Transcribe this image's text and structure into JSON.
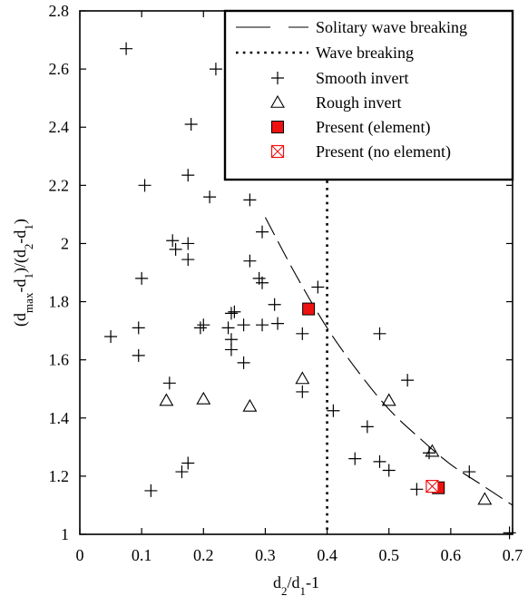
{
  "chart_data": {
    "type": "scatter",
    "title": "",
    "xlabel": {
      "base": "d",
      "sub": "2",
      "mid": "/d",
      "sub2": "1",
      "tail": "-1"
    },
    "ylabel": {
      "open": "(d",
      "sub1": "max",
      "p2": "-d",
      "sub2": "1",
      "p3": ")/(d",
      "sub3": "2",
      "p4": "-d",
      "sub4": "1",
      "p5": ")"
    },
    "xlim": [
      0,
      0.7
    ],
    "ylim": [
      1.0,
      2.8
    ],
    "xticks": [
      0,
      0.1,
      0.2,
      0.3,
      0.4,
      0.5,
      0.6,
      0.7
    ],
    "xtick_labels": [
      "0",
      "0.1",
      "0.2",
      "0.3",
      "0.4",
      "0.5",
      "0.6",
      "0.7"
    ],
    "yticks": [
      1.0,
      1.2,
      1.4,
      1.6,
      1.8,
      2.0,
      2.2,
      2.4,
      2.6,
      2.8
    ],
    "ytick_labels": [
      "1",
      "1.2",
      "1.4",
      "1.6",
      "1.8",
      "2",
      "2.2",
      "2.4",
      "2.6",
      "2.8"
    ],
    "grid": false,
    "legend_position": "top-right",
    "series": [
      {
        "name": "Solitary wave breaking",
        "kind": "curve",
        "style": "long-dash",
        "x": [
          0.3,
          0.35,
          0.4,
          0.45,
          0.5,
          0.55,
          0.6,
          0.65,
          0.7
        ],
        "y": [
          2.09,
          1.89,
          1.71,
          1.56,
          1.43,
          1.33,
          1.24,
          1.17,
          1.1
        ]
      },
      {
        "name": "Wave breaking",
        "kind": "vline",
        "style": "dotted",
        "x": 0.4
      },
      {
        "name": "Smooth invert",
        "kind": "scatter",
        "marker": "plus",
        "points": [
          [
            0.075,
            2.67
          ],
          [
            0.22,
            2.6
          ],
          [
            0.18,
            2.41
          ],
          [
            0.175,
            2.235
          ],
          [
            0.105,
            2.2
          ],
          [
            0.21,
            2.16
          ],
          [
            0.275,
            2.15
          ],
          [
            0.295,
            2.04
          ],
          [
            0.15,
            2.01
          ],
          [
            0.175,
            2.0
          ],
          [
            0.155,
            1.98
          ],
          [
            0.175,
            1.945
          ],
          [
            0.275,
            1.94
          ],
          [
            0.29,
            1.88
          ],
          [
            0.295,
            1.865
          ],
          [
            0.1,
            1.88
          ],
          [
            0.385,
            1.85
          ],
          [
            0.315,
            1.79
          ],
          [
            0.25,
            1.765
          ],
          [
            0.245,
            1.76
          ],
          [
            0.2,
            1.72
          ],
          [
            0.195,
            1.71
          ],
          [
            0.24,
            1.71
          ],
          [
            0.265,
            1.72
          ],
          [
            0.295,
            1.72
          ],
          [
            0.32,
            1.725
          ],
          [
            0.095,
            1.71
          ],
          [
            0.05,
            1.68
          ],
          [
            0.245,
            1.67
          ],
          [
            0.36,
            1.69
          ],
          [
            0.485,
            1.69
          ],
          [
            0.095,
            1.615
          ],
          [
            0.245,
            1.635
          ],
          [
            0.265,
            1.59
          ],
          [
            0.145,
            1.52
          ],
          [
            0.36,
            1.49
          ],
          [
            0.53,
            1.53
          ],
          [
            0.41,
            1.425
          ],
          [
            0.465,
            1.37
          ],
          [
            0.565,
            1.28
          ],
          [
            0.445,
            1.26
          ],
          [
            0.485,
            1.25
          ],
          [
            0.175,
            1.245
          ],
          [
            0.165,
            1.215
          ],
          [
            0.5,
            1.22
          ],
          [
            0.63,
            1.215
          ],
          [
            0.545,
            1.155
          ],
          [
            0.115,
            1.15
          ],
          [
            0.695,
            1.005
          ]
        ]
      },
      {
        "name": "Rough invert",
        "kind": "scatter",
        "marker": "triangle",
        "points": [
          [
            0.14,
            1.46
          ],
          [
            0.2,
            1.465
          ],
          [
            0.275,
            1.44
          ],
          [
            0.36,
            1.535
          ],
          [
            0.5,
            1.46
          ],
          [
            0.57,
            1.285
          ],
          [
            0.655,
            1.12
          ]
        ]
      },
      {
        "name": "Present (element)",
        "kind": "scatter",
        "marker": "filled-square",
        "color": "#ee1111",
        "points": [
          [
            0.37,
            1.775
          ],
          [
            0.58,
            1.16
          ]
        ]
      },
      {
        "name": "Present (no element)",
        "kind": "scatter",
        "marker": "crossed-square",
        "color": "#ee1111",
        "points": [
          [
            0.57,
            1.165
          ]
        ]
      }
    ]
  }
}
